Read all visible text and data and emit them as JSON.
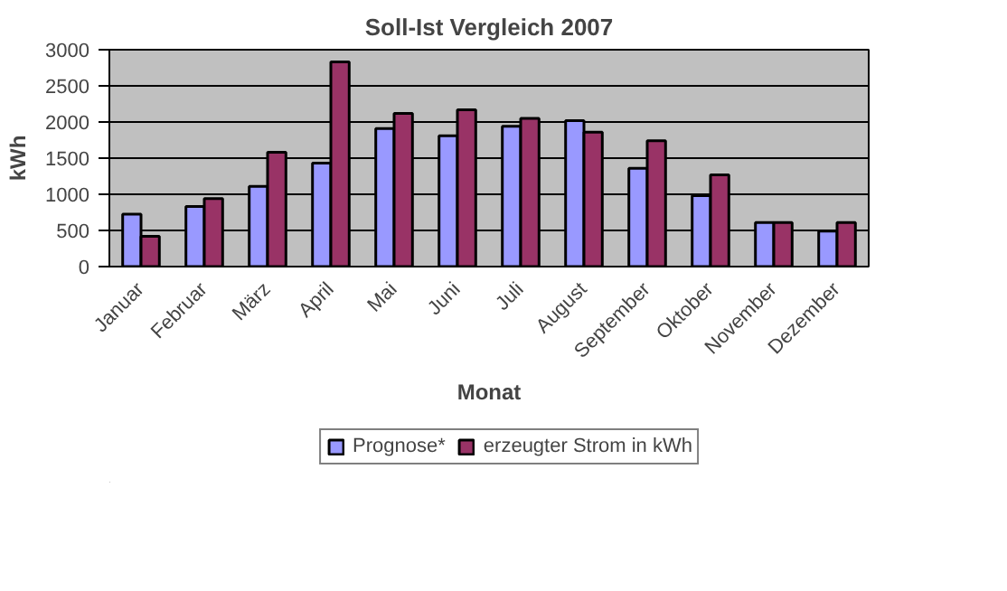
{
  "chart_data": {
    "type": "bar",
    "title": "Soll-Ist Vergleich 2007",
    "xlabel": "Monat",
    "ylabel": "kWh",
    "categories": [
      "Januar",
      "Februar",
      "März",
      "April",
      "Mai",
      "Juni",
      "Juli",
      "August",
      "September",
      "Oktober",
      "November",
      "Dezember"
    ],
    "series": [
      {
        "name": "Prognose*",
        "color": "#9999ff",
        "values": [
          725,
          830,
          1110,
          1430,
          1910,
          1810,
          1940,
          2020,
          1360,
          980,
          610,
          490
        ]
      },
      {
        "name": "erzeugter Strom in kWh",
        "color": "#993366",
        "values": [
          420,
          940,
          1580,
          2830,
          2120,
          2170,
          2050,
          1860,
          1740,
          1270,
          610,
          610
        ]
      }
    ],
    "ylim": [
      0,
      3000
    ],
    "yticks": [
      0,
      500,
      1000,
      1500,
      2000,
      2500,
      3000
    ],
    "grid": "y",
    "legend": "bottom"
  }
}
